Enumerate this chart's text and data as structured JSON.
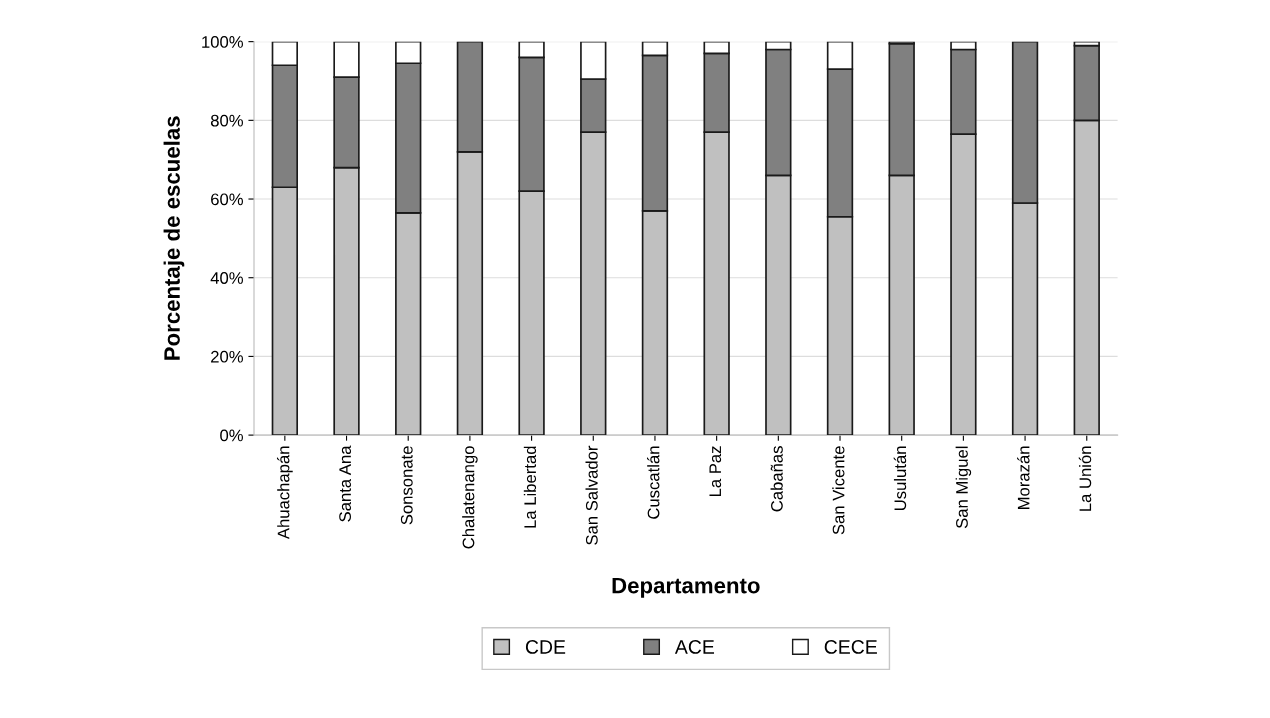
{
  "chart_data": {
    "type": "bar",
    "stacked": true,
    "xlabel": "Departamento",
    "ylabel": "Porcentaje de escuelas",
    "categories": [
      "Ahuachapán",
      "Santa Ana",
      "Sonsonate",
      "Chalatenango",
      "La Libertad",
      "San Salvador",
      "Cuscatlán",
      "La Paz",
      "Cabañas",
      "San Vicente",
      "Usulután",
      "San Miguel",
      "Morazán",
      "La Unión"
    ],
    "series": [
      {
        "name": "CDE",
        "color": "#c0c0c0",
        "values": [
          63,
          68,
          56.5,
          72,
          62,
          77,
          57,
          77,
          66,
          55.5,
          66,
          76.5,
          59,
          80
        ]
      },
      {
        "name": "ACE",
        "color": "#808080",
        "values": [
          31,
          23,
          38,
          28,
          34,
          13.5,
          39.5,
          20,
          32,
          37.5,
          33.5,
          21.5,
          41,
          19
        ]
      },
      {
        "name": "CECE",
        "color": "#ffffff",
        "values": [
          6,
          9,
          5.5,
          0,
          4,
          9.5,
          3.5,
          3,
          2,
          7,
          0.5,
          2,
          0,
          1
        ]
      }
    ],
    "ylim": [
      0,
      100
    ],
    "yticks": [
      {
        "value": 0,
        "label": "0%"
      },
      {
        "value": 20,
        "label": "20%"
      },
      {
        "value": 40,
        "label": "40%"
      },
      {
        "value": 60,
        "label": "60%"
      },
      {
        "value": 80,
        "label": "80%"
      },
      {
        "value": 100,
        "label": "100%"
      }
    ],
    "grid": "y",
    "legend": "bottom"
  }
}
